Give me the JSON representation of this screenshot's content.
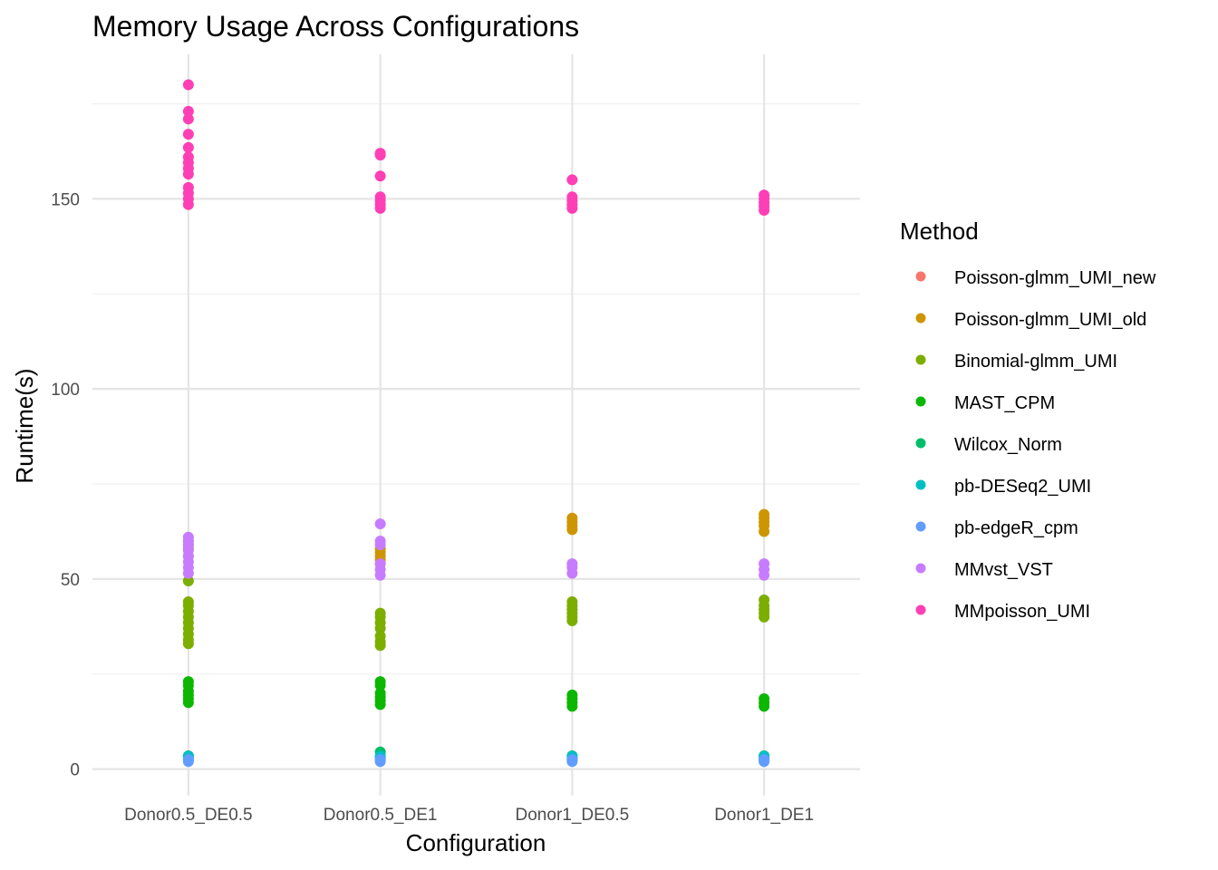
{
  "chart_data": {
    "type": "scatter",
    "title": "Memory Usage Across Configurations",
    "xlabel": "Configuration",
    "ylabel": "Runtime(s)",
    "categories": [
      "Donor0.5_DE0.5",
      "Donor0.5_DE1",
      "Donor1_DE0.5",
      "Donor1_DE1"
    ],
    "ylim": [
      -7,
      188
    ],
    "yticks": [
      0,
      50,
      100,
      150
    ],
    "grid": true,
    "legend_title": "Method",
    "legend_position": "right",
    "series": [
      {
        "name": "Poisson-glmm_UMI_new",
        "color": "#F8766D",
        "points": []
      },
      {
        "name": "Poisson-glmm_UMI_old",
        "color": "#CD9600",
        "points": [
          [
            0,
            56
          ],
          [
            0,
            58
          ],
          [
            0,
            59
          ],
          [
            0,
            60
          ],
          [
            1,
            54
          ],
          [
            1,
            55
          ],
          [
            1,
            56
          ],
          [
            1,
            57
          ],
          [
            1,
            58
          ],
          [
            2,
            63
          ],
          [
            2,
            64
          ],
          [
            2,
            65
          ],
          [
            2,
            66
          ],
          [
            3,
            62.5
          ],
          [
            3,
            64
          ],
          [
            3,
            65
          ],
          [
            3,
            66
          ],
          [
            3,
            67
          ]
        ]
      },
      {
        "name": "Binomial-glmm_UMI",
        "color": "#7CAE00",
        "points": [
          [
            0,
            33
          ],
          [
            0,
            34
          ],
          [
            0,
            35.5
          ],
          [
            0,
            37
          ],
          [
            0,
            38.5
          ],
          [
            0,
            40
          ],
          [
            0,
            41.5
          ],
          [
            0,
            43
          ],
          [
            0,
            44
          ],
          [
            0,
            49.5
          ],
          [
            1,
            32.5
          ],
          [
            1,
            33.5
          ],
          [
            1,
            35
          ],
          [
            1,
            37
          ],
          [
            1,
            38.5
          ],
          [
            1,
            40
          ],
          [
            1,
            41
          ],
          [
            2,
            39
          ],
          [
            2,
            40
          ],
          [
            2,
            41
          ],
          [
            2,
            42
          ],
          [
            2,
            43
          ],
          [
            2,
            44
          ],
          [
            3,
            40
          ],
          [
            3,
            41
          ],
          [
            3,
            42
          ],
          [
            3,
            43
          ],
          [
            3,
            44.5
          ]
        ]
      },
      {
        "name": "MAST_CPM",
        "color": "#0CB702",
        "points": [
          [
            0,
            17.5
          ],
          [
            0,
            18.5
          ],
          [
            0,
            19.5
          ],
          [
            0,
            20.5
          ],
          [
            0,
            22
          ],
          [
            0,
            23
          ],
          [
            1,
            17
          ],
          [
            1,
            18
          ],
          [
            1,
            19
          ],
          [
            1,
            20
          ],
          [
            1,
            22
          ],
          [
            1,
            23
          ],
          [
            2,
            16.5
          ],
          [
            2,
            17.5
          ],
          [
            2,
            18.5
          ],
          [
            2,
            19.5
          ],
          [
            3,
            16.5
          ],
          [
            3,
            17.5
          ],
          [
            3,
            18.5
          ]
        ]
      },
      {
        "name": "Wilcox_Norm",
        "color": "#00BE67",
        "points": [
          [
            0,
            2.5
          ],
          [
            0,
            3.5
          ],
          [
            1,
            3
          ],
          [
            1,
            4.5
          ],
          [
            2,
            2.5
          ],
          [
            2,
            3.5
          ],
          [
            3,
            2.5
          ],
          [
            3,
            3.5
          ]
        ]
      },
      {
        "name": "pb-DESeq2_UMI",
        "color": "#00BFC4",
        "points": [
          [
            0,
            2.8
          ],
          [
            0,
            3.4
          ],
          [
            1,
            2.8
          ],
          [
            1,
            3.4
          ],
          [
            2,
            2.8
          ],
          [
            2,
            3.4
          ],
          [
            3,
            2.8
          ],
          [
            3,
            3.4
          ]
        ]
      },
      {
        "name": "pb-edgeR_cpm",
        "color": "#619CFF",
        "points": [
          [
            0,
            2
          ],
          [
            0,
            2.5
          ],
          [
            1,
            2
          ],
          [
            1,
            2.5
          ],
          [
            2,
            2
          ],
          [
            2,
            2.5
          ],
          [
            3,
            2
          ],
          [
            3,
            2.5
          ]
        ]
      },
      {
        "name": "MMvst_VST",
        "color": "#C77CFF",
        "points": [
          [
            0,
            51.5
          ],
          [
            0,
            53
          ],
          [
            0,
            54.5
          ],
          [
            0,
            56
          ],
          [
            0,
            57.5
          ],
          [
            0,
            59
          ],
          [
            0,
            60
          ],
          [
            0,
            61
          ],
          [
            1,
            51
          ],
          [
            1,
            52.5
          ],
          [
            1,
            54
          ],
          [
            1,
            59
          ],
          [
            1,
            60
          ],
          [
            1,
            64.5
          ],
          [
            2,
            51.5
          ],
          [
            2,
            53
          ],
          [
            2,
            54
          ],
          [
            3,
            51
          ],
          [
            3,
            52.5
          ],
          [
            3,
            54
          ]
        ]
      },
      {
        "name": "MMpoisson_UMI",
        "color": "#FF3FB5",
        "points": [
          [
            0,
            148.5
          ],
          [
            0,
            150
          ],
          [
            0,
            151.5
          ],
          [
            0,
            153
          ],
          [
            0,
            156.5
          ],
          [
            0,
            158
          ],
          [
            0,
            159.5
          ],
          [
            0,
            161
          ],
          [
            0,
            163.5
          ],
          [
            0,
            167
          ],
          [
            0,
            171
          ],
          [
            0,
            173
          ],
          [
            0,
            180
          ],
          [
            1,
            147.5
          ],
          [
            1,
            148.5
          ],
          [
            1,
            149.5
          ],
          [
            1,
            150.5
          ],
          [
            1,
            156
          ],
          [
            1,
            161.5
          ],
          [
            1,
            162
          ],
          [
            2,
            147.5
          ],
          [
            2,
            148.5
          ],
          [
            2,
            149.5
          ],
          [
            2,
            150.5
          ],
          [
            2,
            155
          ],
          [
            3,
            147
          ],
          [
            3,
            148
          ],
          [
            3,
            149
          ],
          [
            3,
            150
          ],
          [
            3,
            151
          ]
        ]
      }
    ]
  }
}
